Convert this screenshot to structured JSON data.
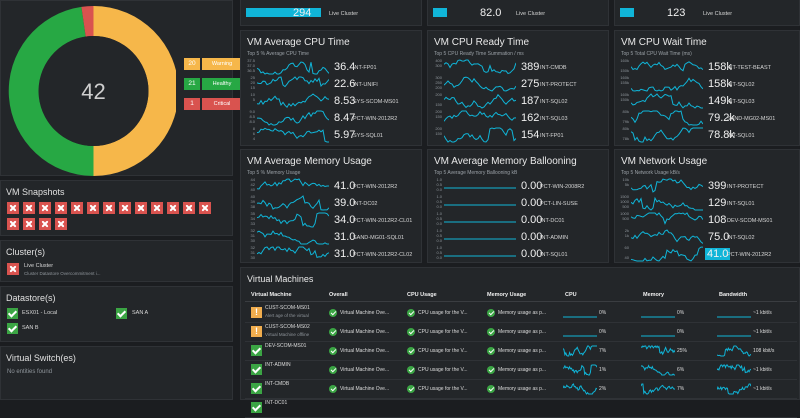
{
  "overview": {
    "center_value": "42",
    "legend": [
      {
        "count": "20",
        "label": "Warning",
        "color": "#f6b74a"
      },
      {
        "count": "21",
        "label": "Healthy",
        "color": "#27a844"
      },
      {
        "count": "1",
        "label": "Critical",
        "color": "#d9534f"
      }
    ]
  },
  "top_strip": [
    {
      "value": "294",
      "label": "Live Cluster"
    },
    {
      "value": "82.0",
      "label": "Live Cluster"
    },
    {
      "value": "123",
      "label": "Live Cluster"
    }
  ],
  "metric_panels": [
    {
      "title": "VM Average CPU Time",
      "subtitle": "Top 5 % Average CPU Time",
      "rows": [
        {
          "value": "36.4",
          "name": "INT-FP01",
          "ticks": [
            "37.5",
            "37.0",
            "36.5"
          ]
        },
        {
          "value": "22.6",
          "name": "INT-UNIFI",
          "ticks": [
            "25",
            "20",
            "15"
          ]
        },
        {
          "value": "8.53",
          "name": "SYS-SCOM-MS01",
          "ticks": [
            "10",
            "5",
            ""
          ]
        },
        {
          "value": "8.47",
          "name": "PCT-WIN-2012R2",
          "ticks": [
            "9.0",
            "8.5",
            "8.0"
          ]
        },
        {
          "value": "5.97",
          "name": "SYS-SQL01",
          "ticks": [
            "8",
            "6",
            "4"
          ]
        }
      ]
    },
    {
      "title": "VM CPU Ready Time",
      "subtitle": "Top 5 CPU Ready Time Summation / ms",
      "rows": [
        {
          "value": "389",
          "name": "INT-CMDB",
          "ticks": [
            "400",
            "300",
            ""
          ]
        },
        {
          "value": "275",
          "name": "INT-PROTECT",
          "ticks": [
            "300",
            "250",
            "200"
          ]
        },
        {
          "value": "187",
          "name": "INT-SQL02",
          "ticks": [
            "200",
            "",
            "150"
          ]
        },
        {
          "value": "162",
          "name": "INT-SQL03",
          "ticks": [
            "200",
            "150",
            ""
          ]
        },
        {
          "value": "154",
          "name": "INT-FP01",
          "ticks": [
            "200",
            "150",
            ""
          ]
        }
      ]
    },
    {
      "title": "VM CPU Wait Time",
      "subtitle": "Top 5 Total CPU Wait Time (ms)",
      "rows": [
        {
          "value": "158k",
          "name": "INT-TEST-BEAST",
          "ticks": [
            "160k",
            "",
            "150k"
          ]
        },
        {
          "value": "158k",
          "name": "INT-SQL02",
          "ticks": [
            "160k",
            "155k",
            ""
          ]
        },
        {
          "value": "149k",
          "name": "INT-SQL03",
          "ticks": [
            "160k",
            "150k",
            ""
          ]
        },
        {
          "value": "79.2k",
          "name": "SAND-MG02-MS01",
          "ticks": [
            "80k",
            "",
            "79k"
          ]
        },
        {
          "value": "78.8k",
          "name": "INT-SQL01",
          "ticks": [
            "80k",
            "",
            "78k"
          ]
        }
      ]
    },
    {
      "title": "VM Average Memory Usage",
      "subtitle": "Top 5 % Memory Usage",
      "rows": [
        {
          "value": "41.0",
          "name": "PCT-WIN-2012R2",
          "ticks": [
            "44",
            "42",
            "40"
          ]
        },
        {
          "value": "39.0",
          "name": "INT-DC02",
          "ticks": [
            "40",
            "39",
            "38"
          ]
        },
        {
          "value": "34.0",
          "name": "PCT-WIN-2012R2-CL01",
          "ticks": [
            "35",
            "34",
            "33"
          ]
        },
        {
          "value": "31.0",
          "name": "SAND-MG01-SQL01",
          "ticks": [
            "32",
            "31",
            "30"
          ]
        },
        {
          "value": "31.0",
          "name": "PCT-WIN-2012R2-CL02",
          "ticks": [
            "32",
            "31",
            "30"
          ]
        }
      ]
    },
    {
      "title": "VM Average Memory Ballooning",
      "subtitle": "Top 5 Average Memory Ballooning kB",
      "rows": [
        {
          "value": "0.00",
          "name": "PCT-WIN-2008R2",
          "ticks": [
            "1.0",
            "0.5",
            "0.0"
          ]
        },
        {
          "value": "0.00",
          "name": "PCT-LIN-SUSE",
          "ticks": [
            "1.0",
            "0.5",
            "0.0"
          ]
        },
        {
          "value": "0.00",
          "name": "INT-DC01",
          "ticks": [
            "1.0",
            "0.5",
            "0.0"
          ]
        },
        {
          "value": "0.00",
          "name": "INT-ADMIN",
          "ticks": [
            "1.0",
            "0.5",
            "0.0"
          ]
        },
        {
          "value": "0.00",
          "name": "INT-SQL01",
          "ticks": [
            "1.0",
            "0.5",
            "0.0"
          ]
        }
      ]
    },
    {
      "title": "VM Network Usage",
      "subtitle": "Top 5 Network Usage kB/s",
      "rows": [
        {
          "value": "399",
          "name": "INT-PROTECT",
          "ticks": [
            "10k",
            "5k",
            ""
          ]
        },
        {
          "value": "129",
          "name": "INT-SQL01",
          "ticks": [
            "1500",
            "1000",
            "500"
          ]
        },
        {
          "value": "108",
          "name": "DEV-SCOM-MS01",
          "ticks": [
            "1000",
            "500",
            ""
          ]
        },
        {
          "value": "75.0",
          "name": "INT-SQL02",
          "ticks": [
            "2k",
            "1k",
            ""
          ]
        },
        {
          "value": "41.0",
          "name": "PCT-WIN-2012R2",
          "ticks": [
            "60",
            "",
            "40"
          ]
        }
      ]
    }
  ],
  "snapshots": {
    "title": "VM Snapshots",
    "count": 17
  },
  "clusters": {
    "title": "Cluster(s)",
    "item_name": "Live Cluster",
    "item_desc": "Cluster Datastore Overcommitment i..."
  },
  "datastores": {
    "title": "Datastore(s)",
    "items": [
      "ESX01 - Local",
      "SAN A",
      "SAN B"
    ]
  },
  "vswitches": {
    "title": "Virtual Switch(es)",
    "empty": "No entities found"
  },
  "vm_table": {
    "title": "Virtual Machines",
    "headers": [
      "Virtual Machine",
      "Overall",
      "CPU Usage",
      "Memory Usage",
      "CPU",
      "Memory",
      "Bandwidth"
    ],
    "rows": [
      {
        "status": "warn",
        "name": "CUST-SCOM-MS01",
        "desc": "Alert age of the virtual",
        "overall": "Virtual Machine Ove...",
        "cpu_usage": "CPU usage for the V...",
        "mem_usage": "Memory usage as p...",
        "cpu": "0%",
        "memory": "0%",
        "bandwidth": "~1 kbit/s"
      },
      {
        "status": "warn",
        "name": "CUST-SCOM-MS02",
        "desc": "Virtual Machine offline",
        "overall": "Virtual Machine Ove...",
        "cpu_usage": "CPU usage for the V...",
        "mem_usage": "Memory usage as p...",
        "cpu": "0%",
        "memory": "0%",
        "bandwidth": "~1 kbit/s"
      },
      {
        "status": "ok",
        "name": "DEV-SCOM-MS01",
        "desc": "",
        "overall": "Virtual Machine Ove...",
        "cpu_usage": "CPU usage for the V...",
        "mem_usage": "Memory usage as p...",
        "cpu": "7%",
        "memory": "25%",
        "bandwidth": "108 kbit/s"
      },
      {
        "status": "ok",
        "name": "INT-ADMIN",
        "desc": "",
        "overall": "Virtual Machine Ove...",
        "cpu_usage": "CPU usage for the V...",
        "mem_usage": "Memory usage as p...",
        "cpu": "1%",
        "memory": "6%",
        "bandwidth": "~1 kbit/s"
      },
      {
        "status": "ok",
        "name": "INT-CMDB",
        "desc": "",
        "overall": "Virtual Machine Ove...",
        "cpu_usage": "CPU usage for the V...",
        "mem_usage": "Memory usage as p...",
        "cpu": "2%",
        "memory": "7%",
        "bandwidth": "~1 kbit/s"
      },
      {
        "status": "ok",
        "name": "INT-DC01",
        "desc": "",
        "overall": "",
        "cpu_usage": "",
        "mem_usage": "",
        "cpu": "",
        "memory": "",
        "bandwidth": ""
      }
    ]
  },
  "colors": {
    "accent": "#10b5d8",
    "warning": "#f6b74a",
    "healthy": "#27a844",
    "critical": "#d9534f"
  }
}
